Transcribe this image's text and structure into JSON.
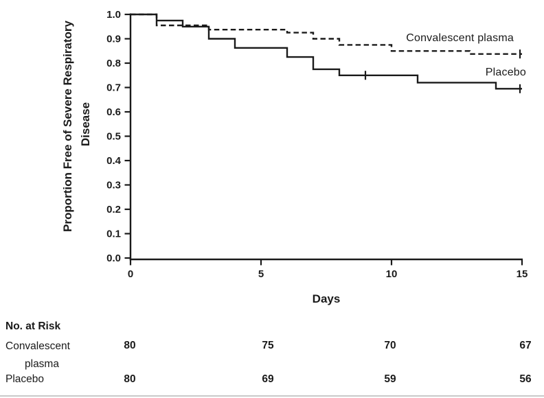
{
  "figure": {
    "background_color": "#ffffff",
    "ink_color": "#1a1a1a"
  },
  "chart_data": {
    "type": "line",
    "subtype": "kaplan-meier-step",
    "title": "",
    "xlabel": "Days",
    "ylabel": "Proportion Free of Severe Respiratory Disease",
    "ylabel_lines": [
      "Proportion Free of Severe Respiratory",
      "Disease"
    ],
    "xlim": [
      0,
      15
    ],
    "ylim": [
      0.0,
      1.0
    ],
    "xticks": [
      "0",
      "5",
      "10",
      "15"
    ],
    "xtick_values": [
      0,
      5,
      10,
      15
    ],
    "yticks": [
      "1.0",
      "0.9",
      "0.8",
      "0.7",
      "0.6",
      "0.5",
      "0.4",
      "0.3",
      "0.2",
      "0.1",
      "0.0"
    ],
    "ytick_values": [
      1.0,
      0.9,
      0.8,
      0.7,
      0.6,
      0.5,
      0.4,
      0.3,
      0.2,
      0.1,
      0.0
    ],
    "grid": false,
    "legend_position": "inline-right",
    "series": [
      {
        "name": "Convalescent plasma",
        "style": "dashed",
        "color": "#1a1a1a",
        "steps": [
          [
            0,
            1.0
          ],
          [
            1,
            0.955
          ],
          [
            3,
            0.9375
          ],
          [
            6,
            0.925
          ],
          [
            7,
            0.9
          ],
          [
            8,
            0.875
          ],
          [
            10,
            0.85
          ],
          [
            13,
            0.8375
          ],
          [
            15,
            0.8375
          ]
        ],
        "censor_marks": [
          [
            15,
            0.8375
          ]
        ]
      },
      {
        "name": "Placebo",
        "style": "solid",
        "color": "#1a1a1a",
        "steps": [
          [
            0,
            1.0
          ],
          [
            1,
            0.975
          ],
          [
            2,
            0.95
          ],
          [
            3,
            0.9
          ],
          [
            4,
            0.8625
          ],
          [
            6,
            0.825
          ],
          [
            7,
            0.775
          ],
          [
            8,
            0.75
          ],
          [
            11,
            0.72
          ],
          [
            14,
            0.695
          ],
          [
            15,
            0.695
          ]
        ],
        "censor_marks": [
          [
            9,
            0.75
          ],
          [
            15,
            0.695
          ]
        ]
      }
    ],
    "at_risk": {
      "title": "No. at Risk",
      "days": [
        0,
        5,
        10,
        15
      ],
      "rows": [
        {
          "label": "Convalescent plasma",
          "label_lines": [
            "Convalescent",
            "plasma"
          ],
          "values": [
            "80",
            "75",
            "70",
            "67"
          ]
        },
        {
          "label": "Placebo",
          "label_lines": [
            "Placebo"
          ],
          "values": [
            "80",
            "69",
            "59",
            "56"
          ]
        }
      ]
    }
  }
}
